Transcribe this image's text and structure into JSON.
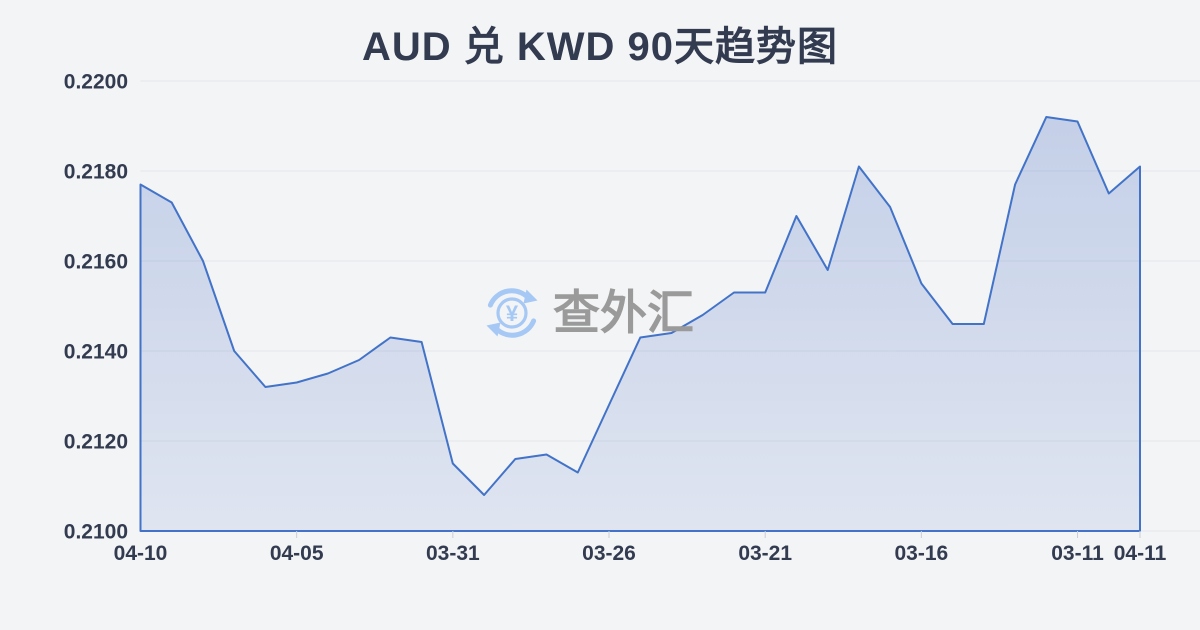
{
  "page": {
    "title": "AUD 兑 KWD 90天趋势图",
    "background_color": "#f3f4f6",
    "title_color": "#323b4f"
  },
  "watermark": {
    "icon": "currency-exchange-icon",
    "icon_symbol": "¥",
    "icon_color": "#a6c8f4",
    "text": "查外汇",
    "text_color": "#9a9a9a"
  },
  "chart_data": {
    "type": "area",
    "title": "AUD 兑 KWD 90天趋势图",
    "series_name": "AUD/KWD",
    "ylim": [
      0.21,
      0.22
    ],
    "y_tick_labels": [
      "0.2200",
      "0.2180",
      "0.2160",
      "0.2140",
      "0.2120",
      "0.2100"
    ],
    "x_ticks": [
      {
        "index": 0,
        "label": "04-10"
      },
      {
        "index": 5,
        "label": "04-05"
      },
      {
        "index": 10,
        "label": "03-31"
      },
      {
        "index": 15,
        "label": "03-26"
      },
      {
        "index": 20,
        "label": "03-21"
      },
      {
        "index": 25,
        "label": "03-16"
      },
      {
        "index": 30,
        "label": "03-11"
      },
      {
        "index": 32,
        "label": "04-11"
      }
    ],
    "values": [
      0.2177,
      0.2173,
      0.216,
      0.214,
      0.2132,
      0.2133,
      0.2135,
      0.2138,
      0.2143,
      0.2142,
      0.2115,
      0.2108,
      0.2116,
      0.2117,
      0.2113,
      0.2128,
      0.2143,
      0.2144,
      0.2148,
      0.2153,
      0.2153,
      0.217,
      0.2158,
      0.2181,
      0.2172,
      0.2155,
      0.2146,
      0.2146,
      0.2177,
      0.2192,
      0.2191,
      0.2175,
      0.2181
    ],
    "grid": "horizontal",
    "legend": "none",
    "line_color": "#4273c8",
    "fill_color_top": "rgba(88,124,200,0.30)",
    "fill_color_bottom": "rgba(88,124,200,0.13)",
    "grid_color": "#e4e6ea"
  }
}
